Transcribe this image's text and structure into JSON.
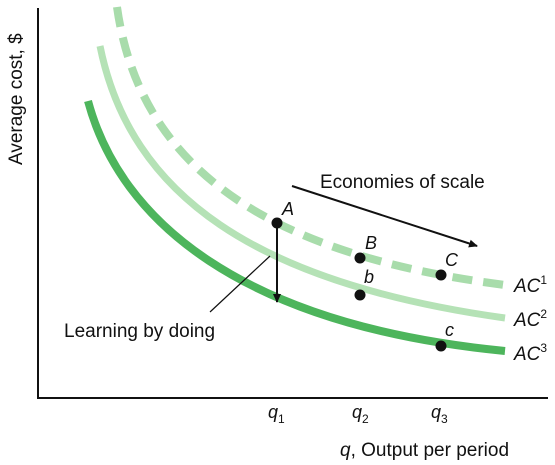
{
  "diagram": {
    "y_axis_label": "Average cost, $",
    "x_axis_label": {
      "var": "q",
      "text": ", Output per period"
    },
    "ticks": [
      {
        "var": "q",
        "sub": "1"
      },
      {
        "var": "q",
        "sub": "2"
      },
      {
        "var": "q",
        "sub": "3"
      }
    ],
    "curves": [
      {
        "base": "AC",
        "sup": "1",
        "style": "dashed",
        "color": "#a8dcab"
      },
      {
        "base": "AC",
        "sup": "2",
        "style": "solid",
        "color": "#b5e2b6"
      },
      {
        "base": "AC",
        "sup": "3",
        "style": "solid",
        "color": "#4db55c"
      }
    ],
    "points": [
      "A",
      "B",
      "b",
      "C",
      "c"
    ],
    "economies_label": "Economies of scale",
    "learning_label": "Learning by doing"
  }
}
